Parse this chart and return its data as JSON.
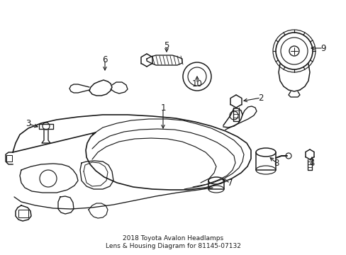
{
  "title": "2018 Toyota Avalon Headlamps\nLens & Housing Diagram for 81145-07132",
  "bg_color": "#ffffff",
  "line_color": "#1a1a1a",
  "figsize": [
    4.89,
    3.6
  ],
  "dpi": 100,
  "label_positions": {
    "1": [
      230,
      155,
      230,
      180
    ],
    "2": [
      365,
      138,
      340,
      138
    ],
    "3": [
      42,
      178,
      65,
      178
    ],
    "4": [
      440,
      228,
      440,
      210
    ],
    "5": [
      235,
      70,
      235,
      82
    ],
    "6": [
      148,
      86,
      148,
      100
    ],
    "7": [
      325,
      258,
      312,
      248
    ],
    "8": [
      390,
      228,
      390,
      212
    ],
    "9": [
      453,
      68,
      432,
      68
    ],
    "10": [
      278,
      118,
      278,
      103
    ]
  }
}
